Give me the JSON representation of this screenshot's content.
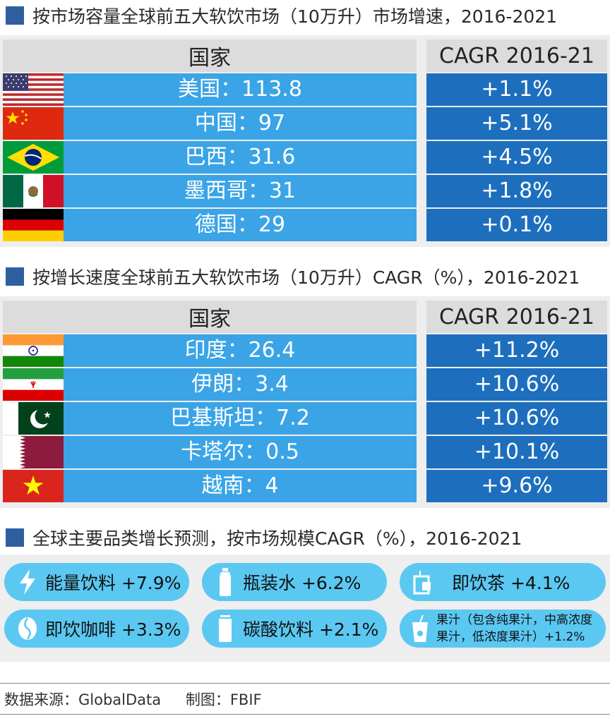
{
  "sections": [
    {
      "title": "按市场容量全球前五大软饮市场（10万升）市场增速，2016-2021",
      "col_country": "国家",
      "col_cagr": "CAGR  2016-21",
      "rows": [
        {
          "label": "美国：113.8",
          "cagr": "+1.1%",
          "flag": "us-flag-icon"
        },
        {
          "label": "中国：97",
          "cagr": "+5.1%",
          "flag": "china-flag-icon"
        },
        {
          "label": "巴西：31.6",
          "cagr": "+4.5%",
          "flag": "brazil-flag-icon"
        },
        {
          "label": "墨西哥：31",
          "cagr": "+1.8%",
          "flag": "mexico-flag-icon"
        },
        {
          "label": "德国：29",
          "cagr": "+0.1%",
          "flag": "germany-flag-icon"
        }
      ]
    },
    {
      "title": "按增长速度全球前五大软饮市场（10万升）CAGR（%），2016-2021",
      "col_country": "国家",
      "col_cagr": "CAGR  2016-21",
      "rows": [
        {
          "label": "印度：26.4",
          "cagr": "+11.2%",
          "flag": "india-flag-icon"
        },
        {
          "label": "伊朗：3.4",
          "cagr": "+10.6%",
          "flag": "iran-flag-icon"
        },
        {
          "label": "巴基斯坦：7.2",
          "cagr": "+10.6%",
          "flag": "pakistan-flag-icon"
        },
        {
          "label": "卡塔尔：0.5",
          "cagr": "+10.1%",
          "flag": "qatar-flag-icon"
        },
        {
          "label": "越南：4",
          "cagr": "+9.6%",
          "flag": "vietnam-flag-icon"
        }
      ]
    }
  ],
  "categories": {
    "title": "全球主要品类增长预测，按市场规模CAGR（%），2016-2021",
    "items": [
      {
        "label": "能量饮料 +7.9%",
        "icon": "lightning-icon"
      },
      {
        "label": "瓶装水 +6.2%",
        "icon": "water-bottle-icon"
      },
      {
        "label": "即饮茶 +4.1%",
        "icon": "tea-cup-icon"
      },
      {
        "label": "即饮咖啡 +3.3%",
        "icon": "coffee-bean-icon"
      },
      {
        "label": "碳酸饮料 +2.1%",
        "icon": "soda-can-icon"
      },
      {
        "label": "果汁（包含纯果汁，中高浓度果汁，低浓度果汁）+1.2%",
        "icon": "juice-cup-icon"
      }
    ]
  },
  "footer": {
    "source": "数据来源：GlobalData",
    "made_by": "制图：FBIF"
  },
  "chart_data": [
    {
      "type": "table",
      "title": "按市场容量全球前五大软饮市场（10万升）市场增速，2016-2021",
      "columns": [
        "国家",
        "CAGR  2016-21"
      ],
      "categories": [
        "美国",
        "中国",
        "巴西",
        "墨西哥",
        "德国"
      ],
      "series": [
        {
          "name": "10万升",
          "values": [
            113.8,
            97,
            31.6,
            31,
            29
          ]
        },
        {
          "name": "CAGR  2016-21",
          "values": [
            1.1,
            5.1,
            4.5,
            1.8,
            0.1
          ]
        }
      ]
    },
    {
      "type": "table",
      "title": "按增长速度全球前五大软饮市场（10万升）CAGR（%），2016-2021",
      "columns": [
        "国家",
        "CAGR  2016-21"
      ],
      "categories": [
        "印度",
        "伊朗",
        "巴基斯坦",
        "卡塔尔",
        "越南"
      ],
      "series": [
        {
          "name": "10万升",
          "values": [
            26.4,
            3.4,
            7.2,
            0.5,
            4
          ]
        },
        {
          "name": "CAGR  2016-21",
          "values": [
            11.2,
            10.6,
            10.6,
            10.1,
            9.6
          ]
        }
      ]
    },
    {
      "type": "table",
      "title": "全球主要品类增长预测，按市场规模CAGR（%），2016-2021",
      "categories": [
        "能量饮料",
        "瓶装水",
        "即饮茶",
        "即饮咖啡",
        "碳酸饮料",
        "果汁（包含纯果汁，中高浓度果汁，低浓度果汁）"
      ],
      "values": [
        7.9,
        6.2,
        4.1,
        3.3,
        2.1,
        1.2
      ]
    }
  ]
}
